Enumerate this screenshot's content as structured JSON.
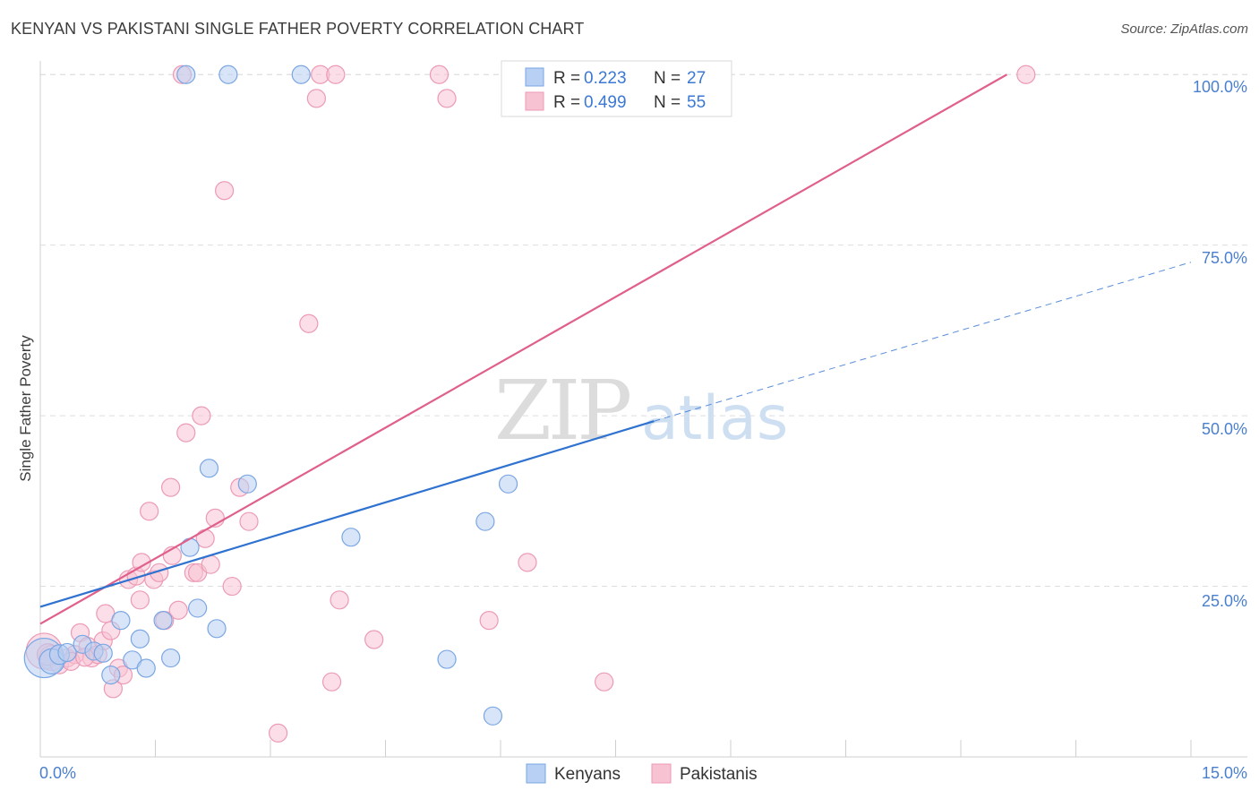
{
  "header": {
    "title": "KENYAN VS PAKISTANI SINGLE FATHER POVERTY CORRELATION CHART",
    "source": "Source: ZipAtlas.com"
  },
  "watermark": {
    "zip": "ZIP",
    "atlas": "atlas"
  },
  "colors": {
    "kenyan_fill": "#b8d0f3",
    "kenyan_stroke": "#7aa6e3",
    "kenyan_line": "#2f72d0",
    "pakistani_fill": "#f7c3d3",
    "pakistani_stroke": "#ec9ab5",
    "pakistani_line": "#e0608b",
    "tick_text": "#4a7fcf",
    "grid": "#dddddd"
  },
  "legend": {
    "rows": [
      {
        "r_label": "R =",
        "r_value": "0.223",
        "n_label": "N =",
        "n_value": "27"
      },
      {
        "r_label": "R =",
        "r_value": "0.499",
        "n_label": "N =",
        "n_value": "55"
      }
    ]
  },
  "bottom_legend": {
    "kenyans": "Kenyans",
    "pakistanis": "Pakistanis"
  },
  "chart_data": {
    "type": "scatter",
    "title": "KENYAN VS PAKISTANI SINGLE FATHER POVERTY CORRELATION CHART",
    "xlabel": "",
    "ylabel": "Single Father Poverty",
    "xlim": [
      0,
      15
    ],
    "ylim": [
      0,
      102
    ],
    "x_tick_labels": {
      "left": "0.0%",
      "right": "15.0%"
    },
    "y_ticks": [
      {
        "value": 25,
        "label": "25.0%"
      },
      {
        "value": 50,
        "label": "50.0%"
      },
      {
        "value": 75,
        "label": "75.0%"
      },
      {
        "value": 100,
        "label": "100.0%"
      }
    ],
    "series": [
      {
        "name": "Kenyans",
        "r": 0.223,
        "n": 27,
        "trend": {
          "x0": 0,
          "y0": 22,
          "x1": 8.0,
          "y1": 49.2,
          "dash_to_x": 15,
          "dash_to_y": 72.5
        },
        "points": [
          {
            "x": 0.05,
            "y": 14.5,
            "s": 22
          },
          {
            "x": 0.15,
            "y": 14.0,
            "s": 14
          },
          {
            "x": 0.25,
            "y": 15.0,
            "s": 11
          },
          {
            "x": 0.35,
            "y": 15.3,
            "s": 10
          },
          {
            "x": 0.55,
            "y": 16.5,
            "s": 10
          },
          {
            "x": 0.7,
            "y": 15.5,
            "s": 10
          },
          {
            "x": 0.82,
            "y": 15.2,
            "s": 10
          },
          {
            "x": 0.92,
            "y": 12.0,
            "s": 10
          },
          {
            "x": 1.05,
            "y": 20.0,
            "s": 10
          },
          {
            "x": 1.2,
            "y": 14.2,
            "s": 10
          },
          {
            "x": 1.3,
            "y": 17.3,
            "s": 10
          },
          {
            "x": 1.38,
            "y": 13.0,
            "s": 10
          },
          {
            "x": 1.6,
            "y": 20.0,
            "s": 10
          },
          {
            "x": 1.7,
            "y": 14.5,
            "s": 10
          },
          {
            "x": 1.9,
            "y": 100.0,
            "s": 10
          },
          {
            "x": 1.95,
            "y": 30.7,
            "s": 10
          },
          {
            "x": 2.05,
            "y": 21.8,
            "s": 10
          },
          {
            "x": 2.2,
            "y": 42.3,
            "s": 10
          },
          {
            "x": 2.3,
            "y": 18.8,
            "s": 10
          },
          {
            "x": 2.45,
            "y": 100.0,
            "s": 10
          },
          {
            "x": 2.7,
            "y": 40.0,
            "s": 10
          },
          {
            "x": 3.4,
            "y": 100.0,
            "s": 10
          },
          {
            "x": 4.05,
            "y": 32.2,
            "s": 10
          },
          {
            "x": 5.3,
            "y": 14.3,
            "s": 10
          },
          {
            "x": 5.8,
            "y": 34.5,
            "s": 10
          },
          {
            "x": 5.9,
            "y": 6.0,
            "s": 10
          },
          {
            "x": 6.1,
            "y": 40.0,
            "s": 10
          }
        ]
      },
      {
        "name": "Pakistanis",
        "r": 0.499,
        "n": 55,
        "trend": {
          "x0": 0,
          "y0": 19.5,
          "x1": 12.6,
          "y1": 100.0
        },
        "points": [
          {
            "x": 0.05,
            "y": 15.5,
            "s": 20
          },
          {
            "x": 0.15,
            "y": 14.5,
            "s": 14
          },
          {
            "x": 0.25,
            "y": 13.5,
            "s": 10
          },
          {
            "x": 0.35,
            "y": 14.5,
            "s": 10
          },
          {
            "x": 0.45,
            "y": 15.0,
            "s": 10
          },
          {
            "x": 0.52,
            "y": 18.2,
            "s": 10
          },
          {
            "x": 0.62,
            "y": 16.2,
            "s": 10
          },
          {
            "x": 0.67,
            "y": 14.5,
            "s": 10
          },
          {
            "x": 0.75,
            "y": 15.0,
            "s": 10
          },
          {
            "x": 0.82,
            "y": 17.0,
            "s": 10
          },
          {
            "x": 0.85,
            "y": 21.0,
            "s": 10
          },
          {
            "x": 0.92,
            "y": 18.5,
            "s": 10
          },
          {
            "x": 0.95,
            "y": 10.0,
            "s": 10
          },
          {
            "x": 1.02,
            "y": 13.0,
            "s": 10
          },
          {
            "x": 1.08,
            "y": 12.0,
            "s": 10
          },
          {
            "x": 1.15,
            "y": 26.0,
            "s": 10
          },
          {
            "x": 1.25,
            "y": 26.5,
            "s": 10
          },
          {
            "x": 1.3,
            "y": 23.0,
            "s": 10
          },
          {
            "x": 1.32,
            "y": 28.5,
            "s": 10
          },
          {
            "x": 1.42,
            "y": 36.0,
            "s": 10
          },
          {
            "x": 1.48,
            "y": 26.0,
            "s": 10
          },
          {
            "x": 1.55,
            "y": 27.0,
            "s": 10
          },
          {
            "x": 1.62,
            "y": 20.0,
            "s": 10
          },
          {
            "x": 1.7,
            "y": 39.5,
            "s": 10
          },
          {
            "x": 1.72,
            "y": 29.5,
            "s": 10
          },
          {
            "x": 1.8,
            "y": 21.5,
            "s": 10
          },
          {
            "x": 1.85,
            "y": 100.0,
            "s": 10
          },
          {
            "x": 1.9,
            "y": 47.5,
            "s": 10
          },
          {
            "x": 2.0,
            "y": 27.0,
            "s": 10
          },
          {
            "x": 2.05,
            "y": 27.0,
            "s": 10
          },
          {
            "x": 2.1,
            "y": 50.0,
            "s": 10
          },
          {
            "x": 2.15,
            "y": 32.0,
            "s": 10
          },
          {
            "x": 2.22,
            "y": 28.2,
            "s": 10
          },
          {
            "x": 2.28,
            "y": 35.0,
            "s": 10
          },
          {
            "x": 2.4,
            "y": 83.0,
            "s": 10
          },
          {
            "x": 2.5,
            "y": 25.0,
            "s": 10
          },
          {
            "x": 2.6,
            "y": 39.5,
            "s": 10
          },
          {
            "x": 2.72,
            "y": 34.5,
            "s": 10
          },
          {
            "x": 3.1,
            "y": 3.5,
            "s": 10
          },
          {
            "x": 3.5,
            "y": 63.5,
            "s": 10
          },
          {
            "x": 3.6,
            "y": 96.5,
            "s": 10
          },
          {
            "x": 3.65,
            "y": 100.0,
            "s": 10
          },
          {
            "x": 3.8,
            "y": 11.0,
            "s": 10
          },
          {
            "x": 3.85,
            "y": 100.0,
            "s": 10
          },
          {
            "x": 3.9,
            "y": 23.0,
            "s": 10
          },
          {
            "x": 4.35,
            "y": 17.2,
            "s": 10
          },
          {
            "x": 5.2,
            "y": 100.0,
            "s": 10
          },
          {
            "x": 5.3,
            "y": 96.5,
            "s": 10
          },
          {
            "x": 5.85,
            "y": 20.0,
            "s": 10
          },
          {
            "x": 6.35,
            "y": 28.5,
            "s": 10
          },
          {
            "x": 7.35,
            "y": 11.0,
            "s": 10
          },
          {
            "x": 12.85,
            "y": 100.0,
            "s": 10
          },
          {
            "x": 0.1,
            "y": 15.0,
            "s": 12
          },
          {
            "x": 0.4,
            "y": 14.0,
            "s": 10
          },
          {
            "x": 0.58,
            "y": 14.6,
            "s": 10
          }
        ]
      }
    ]
  }
}
